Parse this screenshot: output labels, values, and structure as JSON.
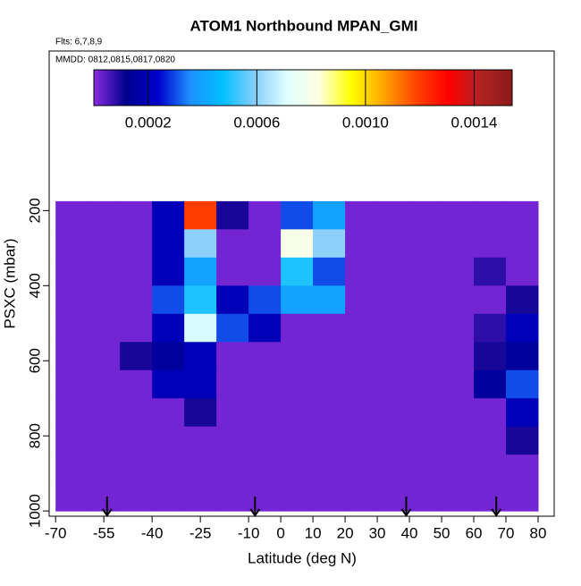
{
  "chart_data": {
    "type": "heatmap",
    "title": "ATOM1 Northbound MPAN_GMI",
    "subtitle": "Flts: 6,7,8,9",
    "annotation": "MMDD: 0812,0815,0817,0820",
    "xlabel": "Latitude (deg N)",
    "ylabel": "PSXC (mbar)",
    "xlim": [
      -72,
      85
    ],
    "ylim": [
      1014,
      -225
    ],
    "log_y": false,
    "xticks": [
      -70,
      -55,
      -40,
      -25,
      -10,
      0,
      10,
      20,
      30,
      40,
      50,
      60,
      70,
      80
    ],
    "yticks": [
      200,
      400,
      600,
      800,
      1000
    ],
    "x_edges": [
      -70,
      -60,
      -50,
      -40,
      -30,
      -20,
      -10,
      0,
      10,
      20,
      30,
      40,
      50,
      60,
      70,
      80
    ],
    "y_edges": [
      175,
      250,
      325,
      400,
      475,
      550,
      625,
      700,
      775,
      850,
      925,
      1000
    ],
    "z": [
      [
        2e-05,
        2e-05,
        2e-05,
        0.0002,
        0.0012,
        0.0001,
        2e-05,
        0.0003,
        0.0004,
        2e-05,
        2e-05,
        2e-05,
        2e-05,
        2e-05,
        2e-05
      ],
      [
        2e-05,
        2e-05,
        2e-05,
        0.0002,
        0.0006,
        2e-05,
        2e-05,
        0.0008,
        0.0006,
        2e-05,
        2e-05,
        2e-05,
        2e-05,
        2e-05,
        2e-05
      ],
      [
        2e-05,
        2e-05,
        2e-05,
        0.0002,
        0.0004,
        2e-05,
        2e-05,
        0.0005,
        0.0003,
        2e-05,
        2e-05,
        2e-05,
        2e-05,
        8e-05,
        2e-05
      ],
      [
        2e-05,
        2e-05,
        2e-05,
        0.0003,
        0.0005,
        0.0002,
        0.0003,
        0.0004,
        0.0004,
        2e-05,
        2e-05,
        2e-05,
        2e-05,
        2e-05,
        0.0001
      ],
      [
        2e-05,
        2e-05,
        2e-05,
        0.0002,
        0.0007,
        0.0003,
        0.0002,
        2e-05,
        2e-05,
        2e-05,
        2e-05,
        2e-05,
        2e-05,
        8e-05,
        0.0002
      ],
      [
        2e-05,
        2e-05,
        0.0001,
        0.00015,
        0.0002,
        2e-05,
        2e-05,
        2e-05,
        2e-05,
        2e-05,
        2e-05,
        2e-05,
        2e-05,
        0.0001,
        0.00015
      ],
      [
        2e-05,
        2e-05,
        2e-05,
        0.0002,
        0.0002,
        2e-05,
        2e-05,
        2e-05,
        2e-05,
        2e-05,
        2e-05,
        2e-05,
        2e-05,
        0.00015,
        0.0003
      ],
      [
        2e-05,
        2e-05,
        2e-05,
        2e-05,
        0.0001,
        2e-05,
        2e-05,
        2e-05,
        2e-05,
        2e-05,
        2e-05,
        2e-05,
        2e-05,
        2e-05,
        0.0002
      ],
      [
        2e-05,
        2e-05,
        2e-05,
        2e-05,
        2e-05,
        2e-05,
        2e-05,
        2e-05,
        2e-05,
        2e-05,
        2e-05,
        2e-05,
        2e-05,
        2e-05,
        0.0001
      ],
      [
        2e-05,
        2e-05,
        2e-05,
        2e-05,
        2e-05,
        2e-05,
        2e-05,
        2e-05,
        2e-05,
        2e-05,
        2e-05,
        2e-05,
        2e-05,
        2e-05,
        2e-05
      ],
      [
        2e-05,
        2e-05,
        2e-05,
        2e-05,
        2e-05,
        2e-05,
        2e-05,
        2e-05,
        2e-05,
        2e-05,
        2e-05,
        2e-05,
        2e-05,
        2e-05,
        2e-05
      ]
    ],
    "clim": [
      0,
      0.00154
    ],
    "cticks": [
      0.0002,
      0.0006,
      {
        "value": 0.001,
        "label": "0.0010"
      },
      0.0014
    ],
    "colors": [
      "#8a2be2",
      "#00008b",
      "#0000cd",
      "#1e90ff",
      "#00bfff",
      "#87cefa",
      "#e0ffff",
      "#ffffe0",
      "#ffff00",
      "#ffa500",
      "#ff4500",
      "#ff0000",
      "#b22222",
      "#8b1a1a"
    ],
    "flight_markers": [
      -54,
      -8,
      39,
      67
    ]
  }
}
